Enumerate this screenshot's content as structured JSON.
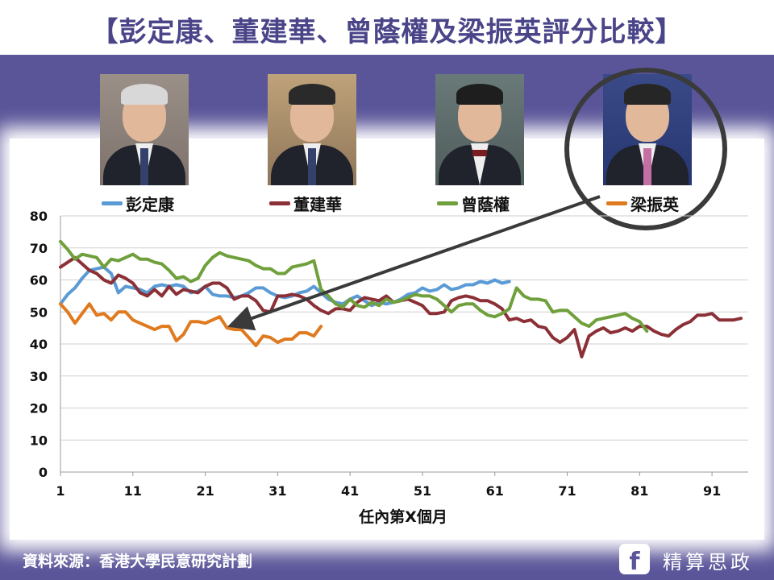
{
  "title": "【彭定康、董建華、曾蔭權及梁振英評分比較】",
  "footer": {
    "source": "資料來源：香港大學民意研究計劃",
    "fb_glyph": "f",
    "brand": "精算思政"
  },
  "colors": {
    "background": "#5a5599",
    "彭定康": "#5b9bd5",
    "董建華": "#8b3036",
    "曾蔭權": "#70a03c",
    "梁振英": "#e07a1f",
    "arrow": "#3a3a3a"
  },
  "chart_data": {
    "type": "line",
    "xlabel": "任內第X個月",
    "ylabel": "",
    "xlim": [
      1,
      96
    ],
    "ylim": [
      0,
      80
    ],
    "x_ticks": [
      1,
      11,
      21,
      31,
      41,
      51,
      61,
      71,
      81,
      91
    ],
    "y_ticks": [
      0,
      10,
      20,
      30,
      40,
      50,
      60,
      70,
      80
    ],
    "grid": "horizontal",
    "legend_position": "top",
    "annotation": "arrow from 梁振英 to his line",
    "series": [
      {
        "name": "彭定康",
        "color": "#5b9bd5",
        "values": [
          52.5,
          55.5,
          57.5,
          60.5,
          63,
          63.5,
          64,
          62,
          56,
          58,
          57.5,
          57,
          56,
          58,
          58.5,
          58,
          58.5,
          58,
          56,
          56.5,
          58,
          55.5,
          55,
          55,
          54.5,
          55,
          56,
          57.5,
          57.5,
          56,
          55,
          54.5,
          55,
          56,
          56.5,
          58,
          56,
          54,
          53,
          52.5,
          54,
          55,
          53.5,
          52,
          53,
          52.5,
          53,
          54,
          55.5,
          56,
          57.5,
          56.5,
          57,
          58.5,
          57,
          57.5,
          58.5,
          58.5,
          59.5,
          59,
          60,
          59,
          59.5
        ]
      },
      {
        "name": "董建華",
        "color": "#8b3036",
        "values": [
          64,
          65.5,
          67,
          65,
          63,
          62,
          60,
          59,
          61.5,
          60.5,
          59,
          56,
          55,
          57,
          55,
          58,
          55.5,
          57,
          56.5,
          56,
          58,
          59,
          59,
          57.5,
          54,
          55,
          55,
          53.5,
          50.5,
          50,
          55,
          55,
          55.5,
          55,
          54,
          52,
          50.5,
          49.5,
          51,
          51,
          50.5,
          53,
          54.5,
          54,
          53.5,
          55,
          53,
          53.5,
          54,
          53,
          52,
          49.5,
          49.5,
          50,
          53.5,
          54.5,
          55,
          54.5,
          53.5,
          53.5,
          52.5,
          51,
          47.5,
          48,
          47,
          47.5,
          45.5,
          45,
          42,
          40.5,
          42,
          44.5,
          36,
          42.5,
          44,
          45,
          43.5,
          44,
          45,
          44,
          45.5,
          45.5,
          44,
          43,
          42.5,
          44.5,
          46,
          47,
          49,
          49,
          49.5,
          47.5,
          47.5,
          47.5,
          48
        ]
      },
      {
        "name": "曾蔭權",
        "color": "#70a03c",
        "values": [
          72,
          69.5,
          66.5,
          68,
          67.5,
          67,
          64,
          66.5,
          66,
          67,
          68,
          66.5,
          66.5,
          65.5,
          65,
          63,
          60.5,
          61,
          59.5,
          60.5,
          64.5,
          67,
          68.5,
          67.5,
          67,
          66.5,
          66,
          64.5,
          63.5,
          63.5,
          62,
          62,
          64,
          64.5,
          65,
          66,
          57,
          55,
          52.5,
          51.5,
          54,
          52,
          51.5,
          53,
          52,
          54,
          53,
          53.5,
          54.5,
          55.5,
          55,
          55,
          54,
          52,
          50,
          52,
          52.5,
          52.5,
          50.5,
          49,
          48.5,
          49.5,
          51,
          57.5,
          55,
          54,
          54,
          53.5,
          50,
          50.5,
          50.5,
          48.5,
          46.5,
          45.5,
          47.5,
          48,
          48.5,
          49,
          49.5,
          48,
          47,
          44
        ]
      },
      {
        "name": "梁振英",
        "color": "#e07a1f",
        "values": [
          52.5,
          50,
          46.5,
          49.5,
          52.5,
          49,
          49.5,
          47.5,
          50,
          50,
          47.5,
          46.5,
          45.5,
          44.5,
          45.5,
          45.5,
          41,
          43,
          47,
          47,
          46.5,
          47.5,
          48.5,
          45,
          44.5,
          44.5,
          42,
          39.5,
          42.5,
          42,
          40.5,
          41.5,
          41.5,
          43.5,
          43.5,
          42.5,
          45.5
        ]
      }
    ]
  }
}
